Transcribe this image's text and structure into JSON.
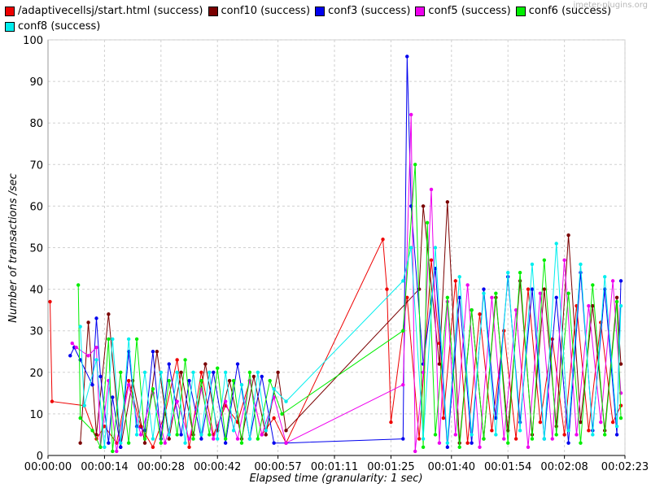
{
  "watermark": "jmeter-plugins.org",
  "chart_data": {
    "type": "line",
    "title": "",
    "xlabel": "Elapsed time (granularity: 1 sec)",
    "ylabel": "Number of transactions /sec",
    "ylim": [
      0,
      100
    ],
    "xlim": [
      0,
      143
    ],
    "x_unit": "seconds elapsed",
    "yticks": [
      "0",
      "10",
      "20",
      "30",
      "40",
      "50",
      "60",
      "70",
      "80",
      "90",
      "100"
    ],
    "xticks": [
      {
        "label": "00:00:00",
        "value": 0
      },
      {
        "label": "00:00:14",
        "value": 14
      },
      {
        "label": "00:00:28",
        "value": 28
      },
      {
        "label": "00:00:42",
        "value": 42
      },
      {
        "label": "00:00:57",
        "value": 57
      },
      {
        "label": "00:01:11",
        "value": 71
      },
      {
        "label": "00:01:25",
        "value": 85
      },
      {
        "label": "00:01:40",
        "value": 100
      },
      {
        "label": "00:01:54",
        "value": 114
      },
      {
        "label": "00:02:08",
        "value": 128
      },
      {
        "label": "00:02:23",
        "value": 143
      }
    ],
    "grid": true,
    "legend_position": "top",
    "series": [
      {
        "name": "/adaptivecellsj/start.html (success)",
        "color": "#ee0000",
        "x": [
          0.5,
          1,
          9,
          12,
          14,
          17,
          20,
          23,
          26,
          29,
          32,
          35,
          38,
          41,
          44,
          47,
          50,
          53,
          56,
          59,
          83,
          84,
          85,
          89,
          92,
          95,
          97,
          98,
          101,
          104,
          107,
          110,
          113,
          116,
          119,
          122,
          125,
          128,
          131,
          134,
          137,
          140,
          142
        ],
        "y": [
          37,
          13,
          12,
          4,
          7,
          3,
          18,
          7,
          2,
          10,
          23,
          2,
          20,
          5,
          12,
          8,
          18,
          5,
          9,
          3,
          52,
          40,
          8,
          38,
          4,
          47,
          27,
          9,
          42,
          3,
          34,
          6,
          30,
          4,
          40,
          8,
          28,
          5,
          36,
          6,
          32,
          8,
          12
        ]
      },
      {
        "name": "conf10 (success)",
        "color": "#7a0000",
        "x": [
          8,
          10,
          12,
          15,
          18,
          21,
          24,
          27,
          30,
          33,
          36,
          39,
          42,
          45,
          48,
          51,
          54,
          57,
          59,
          92,
          93,
          97,
          99,
          102,
          105,
          108,
          111,
          114,
          117,
          120,
          123,
          126,
          129,
          132,
          135,
          138,
          141,
          142
        ],
        "y": [
          3,
          32,
          5,
          34,
          2,
          18,
          3,
          25,
          4,
          20,
          5,
          22,
          6,
          18,
          4,
          19,
          5,
          20,
          6,
          40,
          60,
          22,
          61,
          3,
          35,
          4,
          38,
          6,
          42,
          5,
          40,
          7,
          53,
          8,
          36,
          6,
          38,
          22
        ]
      },
      {
        "name": "conf3 (success)",
        "color": "#0000ee",
        "x": [
          5.5,
          6.5,
          8,
          11,
          12,
          13,
          15,
          16,
          18,
          20,
          22,
          24,
          26,
          28,
          30,
          33,
          35,
          38,
          41,
          44,
          47,
          50,
          53,
          56,
          59,
          88,
          89,
          90,
          93,
          96,
          99,
          102,
          105,
          108,
          111,
          114,
          117,
          120,
          123,
          126,
          129,
          132,
          135,
          138,
          141,
          142
        ],
        "y": [
          24,
          26,
          23,
          17,
          33,
          19,
          3,
          14,
          2,
          25,
          7,
          6,
          25,
          4,
          22,
          5,
          18,
          4,
          20,
          3,
          22,
          4,
          19,
          3,
          3,
          4,
          96,
          60,
          22,
          45,
          2,
          38,
          3,
          40,
          9,
          43,
          8,
          40,
          4,
          38,
          3,
          44,
          6,
          40,
          5,
          42
        ]
      },
      {
        "name": "conf5 (success)",
        "color": "#ee00ee",
        "x": [
          6,
          7,
          10,
          12,
          13,
          15,
          17,
          20,
          23,
          26,
          29,
          32,
          35,
          38,
          41,
          44,
          47,
          50,
          53,
          56,
          59,
          88,
          90,
          91,
          93,
          95,
          97,
          99,
          101,
          104,
          107,
          110,
          113,
          116,
          119,
          122,
          125,
          128,
          131,
          134,
          137,
          140,
          142
        ],
        "y": [
          27,
          26,
          24,
          26,
          2,
          18,
          1,
          17,
          5,
          15,
          3,
          13,
          4,
          16,
          4,
          13,
          4,
          18,
          5,
          14,
          3,
          17,
          82,
          1,
          20,
          64,
          3,
          37,
          5,
          41,
          2,
          38,
          4,
          35,
          2,
          39,
          4,
          47,
          5,
          36,
          8,
          42,
          15
        ]
      },
      {
        "name": "conf6 (success)",
        "color": "#00ee00",
        "x": [
          7.5,
          8,
          11,
          13,
          15,
          16,
          18,
          20,
          22,
          24,
          26,
          28,
          30,
          32,
          34,
          36,
          38,
          40,
          42,
          44,
          46,
          48,
          50,
          52,
          55,
          58,
          88,
          91,
          93,
          94,
          96,
          99,
          102,
          105,
          108,
          111,
          114,
          117,
          120,
          123,
          126,
          129,
          132,
          135,
          138,
          141,
          142
        ],
        "y": [
          41,
          9,
          6,
          2,
          28,
          1,
          20,
          3,
          28,
          4,
          16,
          3,
          18,
          5,
          23,
          4,
          18,
          5,
          21,
          4,
          18,
          3,
          20,
          4,
          18,
          10,
          30,
          70,
          2,
          56,
          5,
          38,
          2,
          35,
          4,
          39,
          3,
          44,
          4,
          47,
          5,
          39,
          3,
          41,
          5,
          37,
          9
        ]
      },
      {
        "name": "conf8 (success)",
        "color": "#00eeee",
        "x": [
          8,
          9,
          12,
          14,
          16,
          18,
          20,
          22,
          24,
          26,
          28,
          30,
          32,
          34,
          36,
          38,
          40,
          42,
          44,
          46,
          48,
          50,
          52,
          54,
          56,
          59,
          88,
          90,
          93,
          96,
          99,
          102,
          105,
          108,
          111,
          114,
          117,
          120,
          123,
          126,
          129,
          132,
          135,
          138,
          141,
          142
        ],
        "y": [
          31,
          12,
          23,
          2,
          28,
          3,
          28,
          5,
          20,
          4,
          20,
          5,
          20,
          3,
          20,
          5,
          20,
          4,
          20,
          6,
          17,
          4,
          20,
          6,
          16,
          13,
          42,
          50,
          4,
          50,
          3,
          43,
          5,
          39,
          5,
          44,
          6,
          46,
          4,
          51,
          6,
          46,
          5,
          43,
          7,
          36
        ]
      }
    ]
  }
}
